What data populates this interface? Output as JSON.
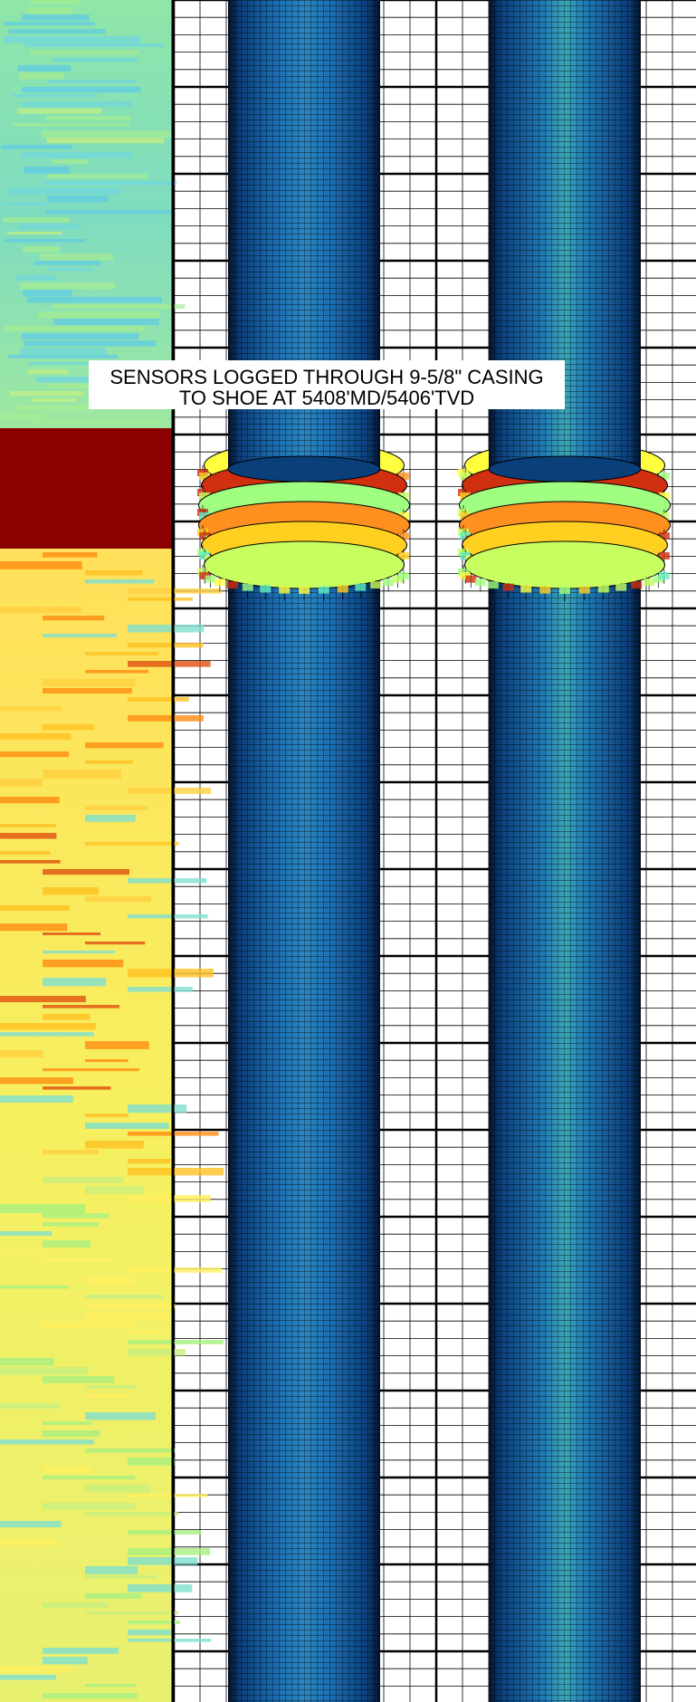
{
  "annotation": {
    "line1": "SENSORS LOGGED THROUGH 9-5/8\" CASING",
    "line2": "TO SHOE AT 5408'MD/5406'TVD"
  }
}
